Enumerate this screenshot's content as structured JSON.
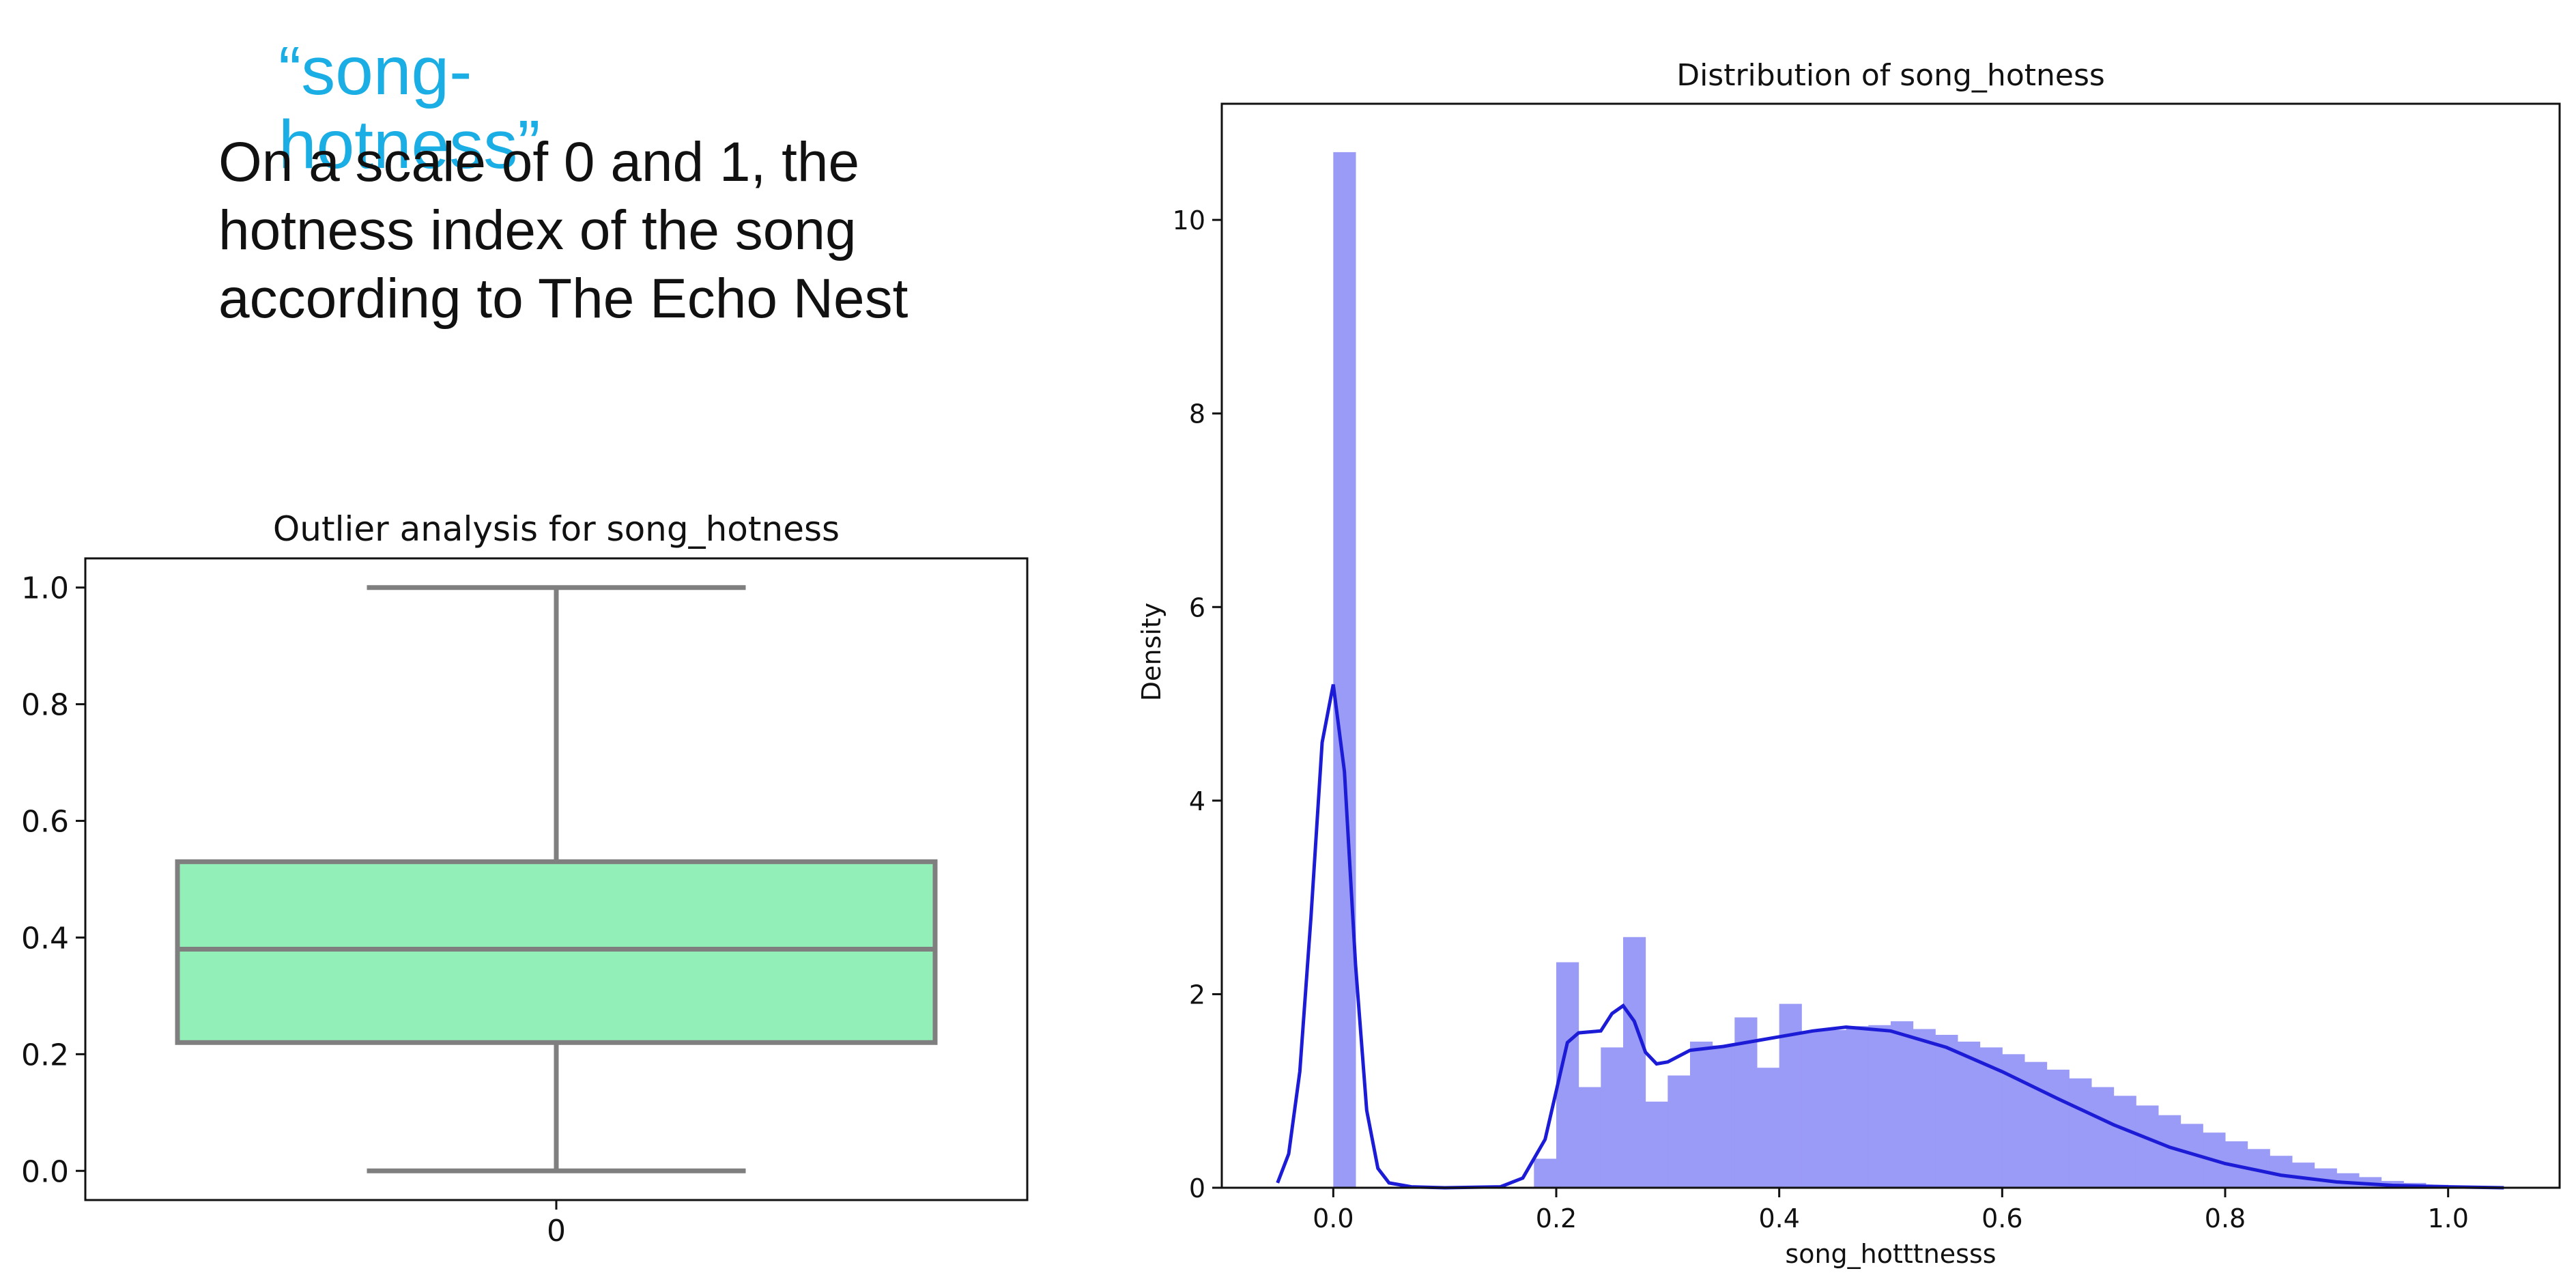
{
  "slide": {
    "heading": "“song-hotness”",
    "description": "On a scale of 0 and 1, the hotness index of the song according to The Echo Nest"
  },
  "colors": {
    "box_fill": "#93efb8",
    "box_stroke": "#7f7f7f",
    "hist_fill": "#9a9af7",
    "kde_line": "#1c1cd6",
    "heading": "#1aaee4"
  },
  "chart_data": [
    {
      "type": "box",
      "title": "Outlier analysis for song_hotness",
      "xlabel": "",
      "ylabel": "",
      "categories": [
        "0"
      ],
      "ylim": [
        -0.05,
        1.05
      ],
      "yticks": [
        "0.0",
        "0.2",
        "0.4",
        "0.6",
        "0.8",
        "1.0"
      ],
      "box": {
        "min": 0.0,
        "q1": 0.22,
        "median": 0.38,
        "q3": 0.53,
        "max": 1.0
      },
      "grid": false
    },
    {
      "type": "histogram",
      "title": "Distribution of song_hotness",
      "xlabel": "song_hotttnesss",
      "ylabel": "Density",
      "xlim": [
        -0.1,
        1.1
      ],
      "ylim": [
        0,
        11.2
      ],
      "xticks": [
        "0.0",
        "0.2",
        "0.4",
        "0.6",
        "0.8",
        "1.0"
      ],
      "yticks": [
        "0",
        "2",
        "4",
        "6",
        "8",
        "10"
      ],
      "grid": false,
      "bins": {
        "start": 0.0,
        "width": 0.02,
        "density": [
          10.7,
          0,
          0,
          0,
          0,
          0,
          0,
          0,
          0,
          0.3,
          2.33,
          1.04,
          1.45,
          2.59,
          0.89,
          1.16,
          1.51,
          1.47,
          1.76,
          1.24,
          1.9,
          1.62,
          1.63,
          1.67,
          1.68,
          1.72,
          1.64,
          1.58,
          1.51,
          1.45,
          1.38,
          1.3,
          1.22,
          1.13,
          1.04,
          0.95,
          0.85,
          0.75,
          0.66,
          0.57,
          0.48,
          0.4,
          0.33,
          0.26,
          0.2,
          0.15,
          0.11,
          0.07,
          0.05,
          0.03
        ]
      },
      "kde": {
        "x": [
          -0.05,
          -0.04,
          -0.03,
          -0.02,
          -0.01,
          0.0,
          0.01,
          0.02,
          0.03,
          0.04,
          0.05,
          0.07,
          0.1,
          0.15,
          0.17,
          0.19,
          0.2,
          0.21,
          0.22,
          0.24,
          0.25,
          0.26,
          0.27,
          0.28,
          0.29,
          0.3,
          0.32,
          0.35,
          0.38,
          0.4,
          0.43,
          0.46,
          0.5,
          0.55,
          0.6,
          0.65,
          0.7,
          0.75,
          0.8,
          0.85,
          0.9,
          0.95,
          1.0,
          1.05
        ],
        "y": [
          0.05,
          0.35,
          1.2,
          2.8,
          4.6,
          5.2,
          4.3,
          2.3,
          0.8,
          0.2,
          0.05,
          0.01,
          0.0,
          0.01,
          0.1,
          0.5,
          1.0,
          1.5,
          1.6,
          1.62,
          1.8,
          1.88,
          1.72,
          1.4,
          1.28,
          1.3,
          1.42,
          1.46,
          1.52,
          1.56,
          1.62,
          1.66,
          1.62,
          1.45,
          1.2,
          0.92,
          0.65,
          0.42,
          0.25,
          0.13,
          0.06,
          0.025,
          0.01,
          0.0
        ]
      }
    }
  ]
}
